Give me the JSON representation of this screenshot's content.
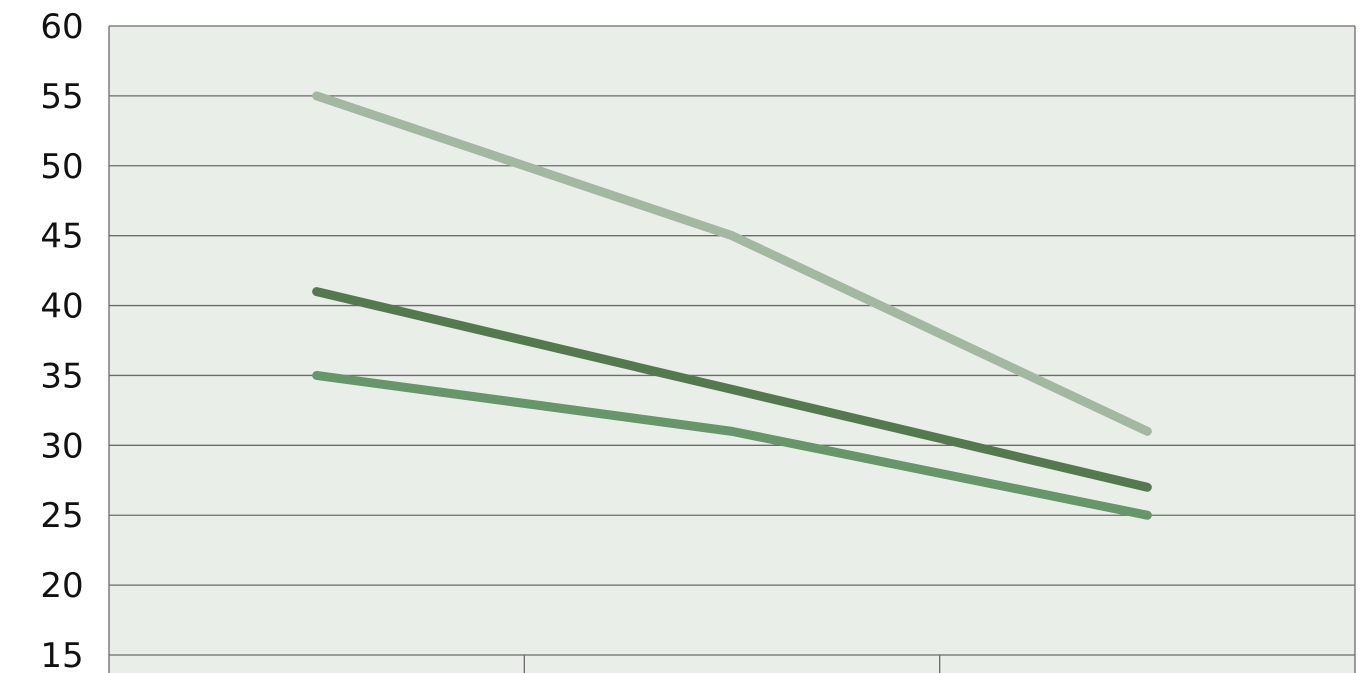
{
  "chart_data": {
    "type": "line",
    "categories": [
      "",
      "",
      ""
    ],
    "series": [
      {
        "values": [
          55,
          45,
          31
        ],
        "color": "#a3b8a1"
      },
      {
        "values": [
          41,
          34,
          27
        ],
        "color": "#55794f"
      },
      {
        "values": [
          35,
          31,
          25
        ],
        "color": "#66966a"
      }
    ],
    "ylim": [
      15,
      60
    ],
    "yticks": [
      "60",
      "55",
      "50",
      "45",
      "40",
      "35",
      "30",
      "25",
      "20",
      "15"
    ],
    "title": "",
    "xlabel": "",
    "ylabel": "",
    "grid": true,
    "plot_background": "#eaeee9",
    "gridline_color": "#6b6b6b"
  }
}
